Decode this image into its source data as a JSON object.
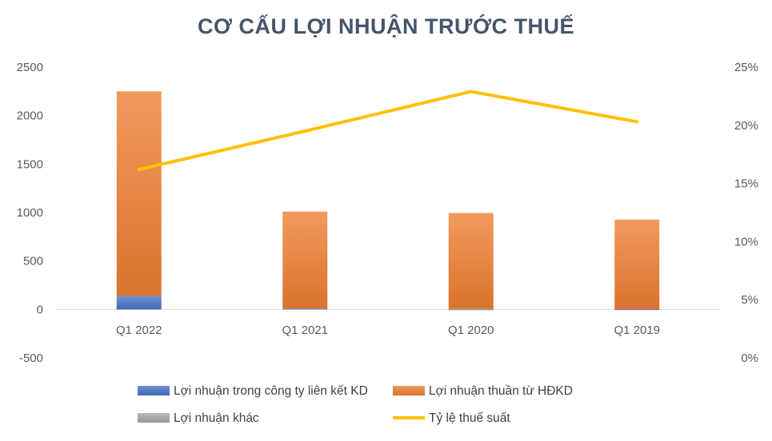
{
  "chart_data": {
    "type": "bar",
    "stacked": true,
    "title": "CƠ CẤU LỢI NHUẬN TRƯỚC THUẾ",
    "categories": [
      "Q1 2022",
      "Q1 2021",
      "Q1 2020",
      "Q1 2019"
    ],
    "series": [
      {
        "name": "Lợi nhuận trong công ty liên kết KD",
        "type": "bar",
        "axis": "left",
        "color": "#4472C4",
        "values": [
          140,
          10,
          5,
          2
        ]
      },
      {
        "name": "Lợi nhuận thuần từ HĐKD",
        "type": "bar",
        "axis": "left",
        "color": "#ED7D31",
        "values": [
          2110,
          1000,
          990,
          925
        ]
      },
      {
        "name": "Lợi nhuận khác",
        "type": "bar",
        "axis": "left",
        "color": "#A5A5A5",
        "values": [
          0,
          0,
          -5,
          0
        ]
      },
      {
        "name": "Tỷ lệ thuế suất",
        "type": "line",
        "axis": "right",
        "color": "#FFC000",
        "values": [
          0.162,
          0.195,
          0.229,
          0.203
        ]
      }
    ],
    "y_left": {
      "min": -500,
      "max": 2500,
      "ticks": [
        2500,
        2000,
        1500,
        1000,
        500,
        0,
        -500
      ],
      "tick_labels": [
        "2500",
        "2000",
        "1500",
        "1000",
        "500",
        "0",
        "-500"
      ]
    },
    "y_right": {
      "min": 0,
      "max": 0.25,
      "ticks": [
        0.25,
        0.2,
        0.15,
        0.1,
        0.05,
        0
      ],
      "tick_labels": [
        "25%",
        "20%",
        "15%",
        "10%",
        "5%",
        "0%"
      ]
    },
    "grid": false,
    "legend_position": "bottom"
  }
}
